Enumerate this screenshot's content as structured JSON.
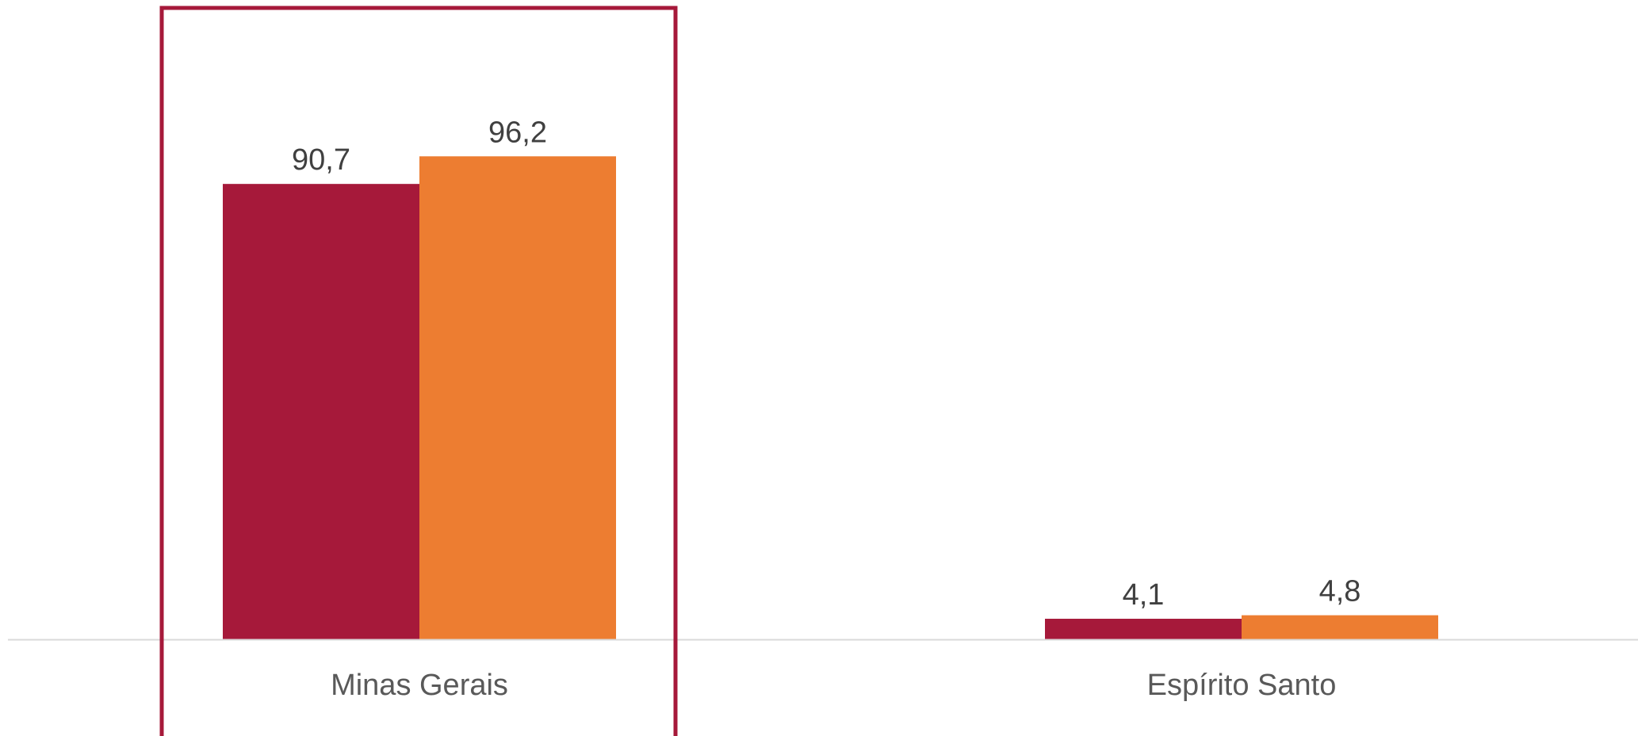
{
  "chart_data": {
    "type": "bar",
    "categories": [
      "Minas Gerais",
      "Espírito Santo"
    ],
    "series": [
      {
        "values": [
          90.7,
          4.1
        ],
        "labels": [
          "90,7",
          "4,1"
        ],
        "color": "#A6193A"
      },
      {
        "values": [
          96.2,
          4.8
        ],
        "labels": [
          "96,2",
          "4,8"
        ],
        "color": "#ED7D31"
      }
    ],
    "highlighted_category": "Minas Gerais",
    "highlight_color": "#A6193A",
    "axis_color": "#D9D9D9",
    "ylim": [
      0,
      100
    ],
    "grid": false,
    "legend": "none"
  }
}
